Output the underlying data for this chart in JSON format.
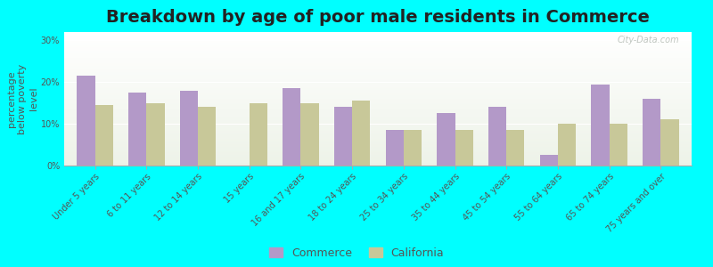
{
  "title": "Breakdown by age of poor male residents in Commerce",
  "ylabel": "percentage\nbelow poverty\nlevel",
  "categories": [
    "Under 5 years",
    "6 to 11 years",
    "12 to 14 years",
    "15 years",
    "16 and 17 years",
    "18 to 24 years",
    "25 to 34 years",
    "35 to 44 years",
    "45 to 54 years",
    "55 to 64 years",
    "65 to 74 years",
    "75 years and over"
  ],
  "commerce_values": [
    21.5,
    17.5,
    18.0,
    0.0,
    18.5,
    14.0,
    8.5,
    12.5,
    14.0,
    2.5,
    19.5,
    16.0
  ],
  "california_values": [
    14.5,
    15.0,
    14.0,
    15.0,
    15.0,
    15.5,
    8.5,
    8.5,
    8.5,
    10.0,
    10.0,
    11.0
  ],
  "commerce_color": "#b399c8",
  "california_color": "#c8c899",
  "background_color": "#00ffff",
  "ylim": [
    0,
    32
  ],
  "yticks": [
    0,
    10,
    20,
    30
  ],
  "ytick_labels": [
    "0%",
    "10%",
    "20%",
    "30%"
  ],
  "legend_labels": [
    "Commerce",
    "California"
  ],
  "bar_width": 0.35,
  "title_fontsize": 14,
  "tick_fontsize": 7,
  "ylabel_fontsize": 8
}
